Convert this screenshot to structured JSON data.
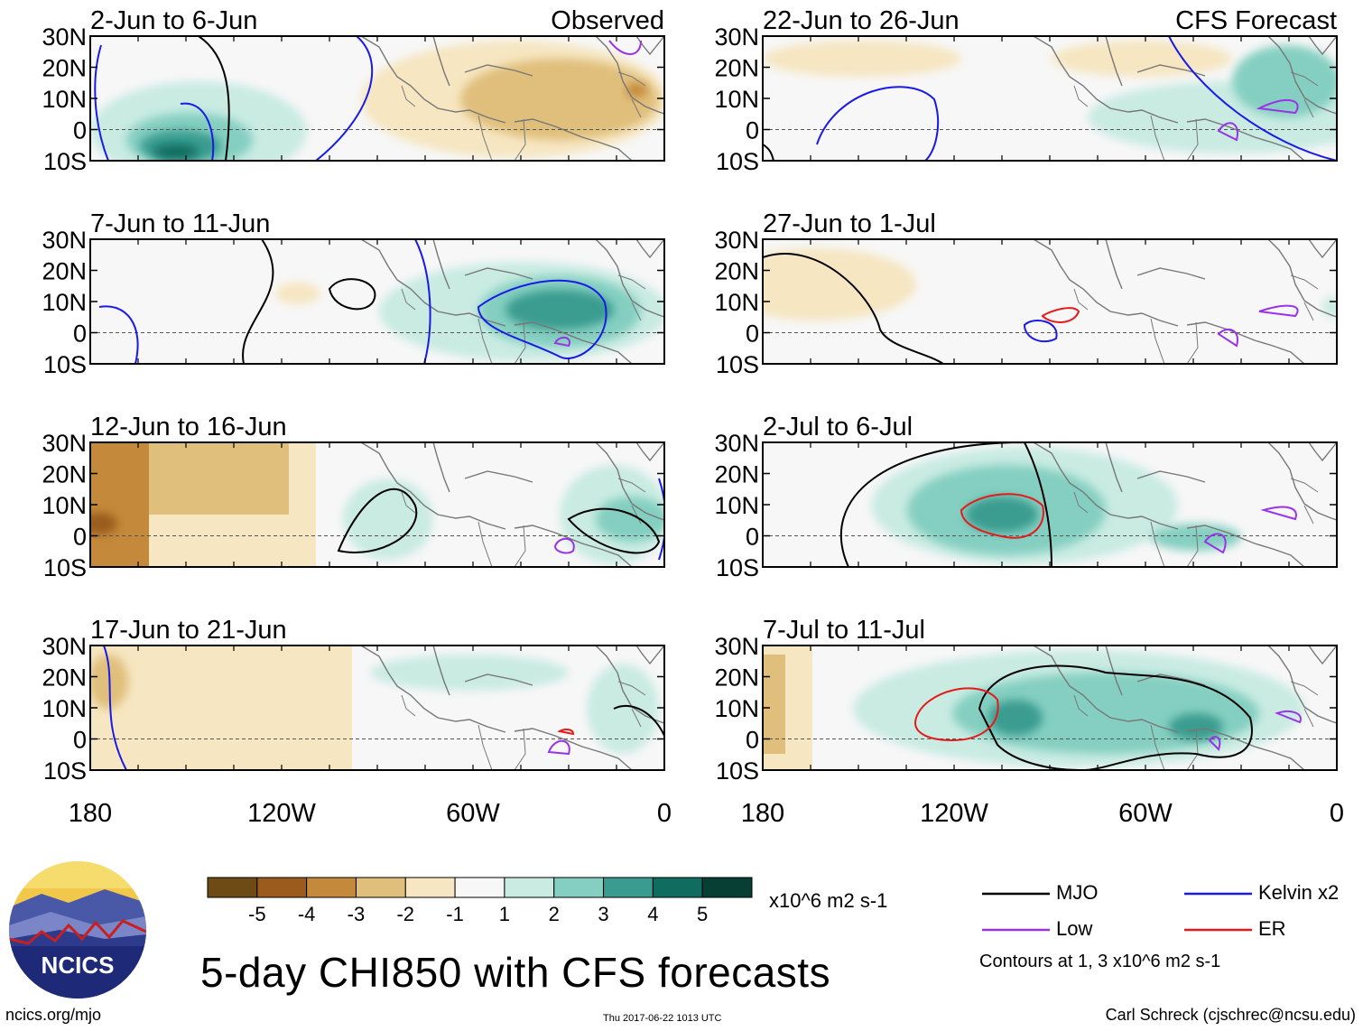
{
  "figure": {
    "title": "5-day CHI850 with CFS forecasts",
    "units": "x10^6 m2 s-1",
    "website": "ncics.org/mjo",
    "timestamp": "Thu 2017-06-22 1013 UTC",
    "author": "Carl Schreck (cjschrec@ncsu.edu)",
    "logo_text": "NCICS"
  },
  "panels": [
    {
      "col": 0,
      "row": 0,
      "period": "2-Jun to 6-Jun",
      "tag": "Observed"
    },
    {
      "col": 0,
      "row": 1,
      "period": "7-Jun to 11-Jun",
      "tag": ""
    },
    {
      "col": 0,
      "row": 2,
      "period": "12-Jun to 16-Jun",
      "tag": ""
    },
    {
      "col": 0,
      "row": 3,
      "period": "17-Jun to 21-Jun",
      "tag": ""
    },
    {
      "col": 1,
      "row": 0,
      "period": "22-Jun to 26-Jun",
      "tag": "CFS Forecast"
    },
    {
      "col": 1,
      "row": 1,
      "period": "27-Jun to 1-Jul",
      "tag": ""
    },
    {
      "col": 1,
      "row": 2,
      "period": "2-Jul to 6-Jul",
      "tag": ""
    },
    {
      "col": 1,
      "row": 3,
      "period": "7-Jul to 11-Jul",
      "tag": ""
    }
  ],
  "axes": {
    "lat_ticks": [
      "30N",
      "20N",
      "10N",
      "0",
      "10S"
    ],
    "lon_ticks": [
      "180",
      "120W",
      "60W",
      "0"
    ]
  },
  "colorbar": {
    "labels": [
      "-5",
      "-4",
      "-3",
      "-2",
      "-1",
      "1",
      "2",
      "3",
      "4",
      "5"
    ],
    "colors": [
      "#6e4a14",
      "#9a5b1c",
      "#c4893a",
      "#e0bf7c",
      "#f6e6c1",
      "#f7f7f7",
      "#c9ebe2",
      "#84cfc1",
      "#3a9c90",
      "#0f6c5f",
      "#073f35"
    ]
  },
  "legend": {
    "items": [
      {
        "label": "MJO",
        "color": "#000000"
      },
      {
        "label": "Kelvin x2",
        "color": "#1a1ae6"
      },
      {
        "label": "Low",
        "color": "#9933e6"
      },
      {
        "label": "ER",
        "color": "#e61a1a"
      }
    ],
    "note": "Contours at 1, 3 x10^6 m2 s-1"
  }
}
